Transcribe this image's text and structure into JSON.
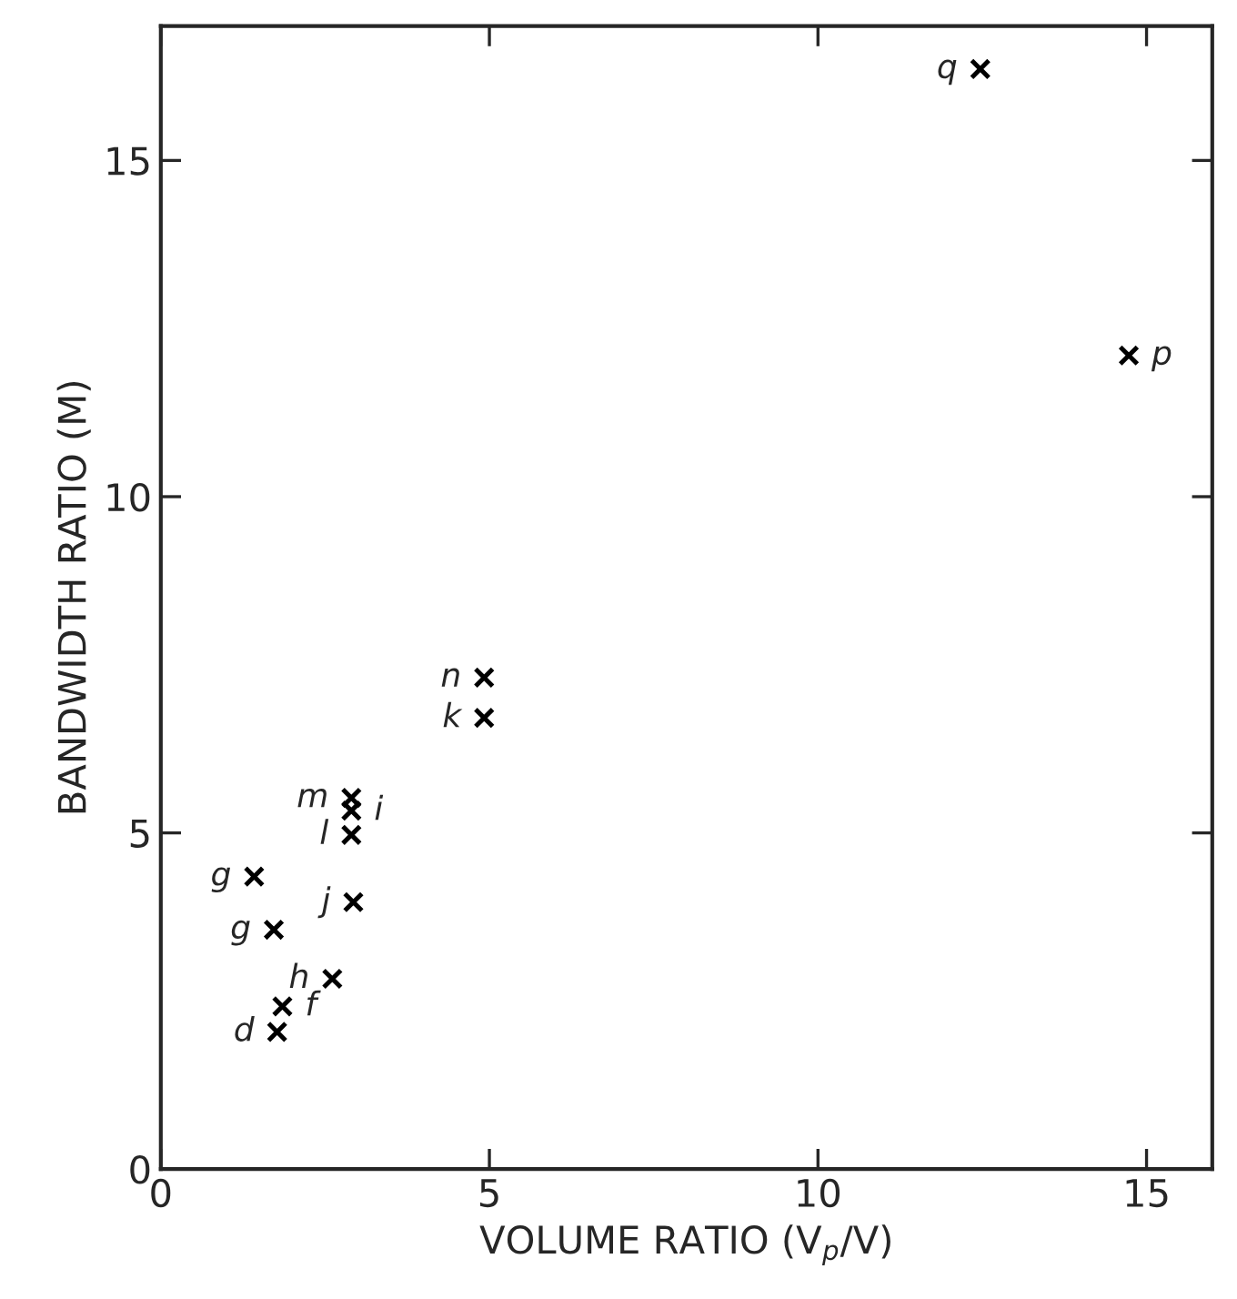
{
  "chart_data": {
    "type": "scatter",
    "xlabel": "VOLUME RATIO (V$_{p}$/V)",
    "ylabel": "BANDWIDTH RATIO (M)",
    "x": [
      4.92,
      4.92,
      2.9,
      2.9,
      2.9,
      1.42,
      2.93,
      1.72,
      2.61,
      1.85,
      1.77,
      12.47,
      14.73
    ],
    "series": [
      {
        "color": "#000000",
        "values": [
          7.31,
          6.71,
          5.52,
          4.97,
          5.33,
          4.35,
          3.97,
          3.56,
          2.83,
          2.42,
          2.04,
          16.36,
          12.1
        ]
      }
    ],
    "annotations": [
      {
        "text": "n",
        "x": 4.92,
        "y": 7.31
      },
      {
        "text": "k",
        "x": 4.92,
        "y": 6.71
      },
      {
        "text": "m",
        "x": 2.9,
        "y": 5.52
      },
      {
        "text": "l",
        "x": 2.9,
        "y": 4.97
      },
      {
        "text": "i",
        "x": 2.9,
        "y": 5.33
      },
      {
        "text": "g",
        "x": 1.42,
        "y": 4.35
      },
      {
        "text": "j",
        "x": 2.93,
        "y": 3.97
      },
      {
        "text": "g",
        "x": 1.72,
        "y": 3.56
      },
      {
        "text": "h",
        "x": 2.61,
        "y": 2.83
      },
      {
        "text": "d",
        "x": 1.77,
        "y": 2.04
      },
      {
        "text": "f",
        "x": 1.85,
        "y": 2.42
      },
      {
        "text": "q",
        "x": 12.47,
        "y": 16.36
      },
      {
        "text": "p",
        "x": 14.73,
        "y": 12.1
      }
    ],
    "xlim": [
      0,
      16
    ],
    "ylim": [
      0,
      17
    ],
    "xticks": [
      0,
      5,
      10,
      15
    ],
    "yticks": [
      0,
      5,
      10,
      15
    ],
    "marker": "cross",
    "grid": false,
    "legend": false
  }
}
